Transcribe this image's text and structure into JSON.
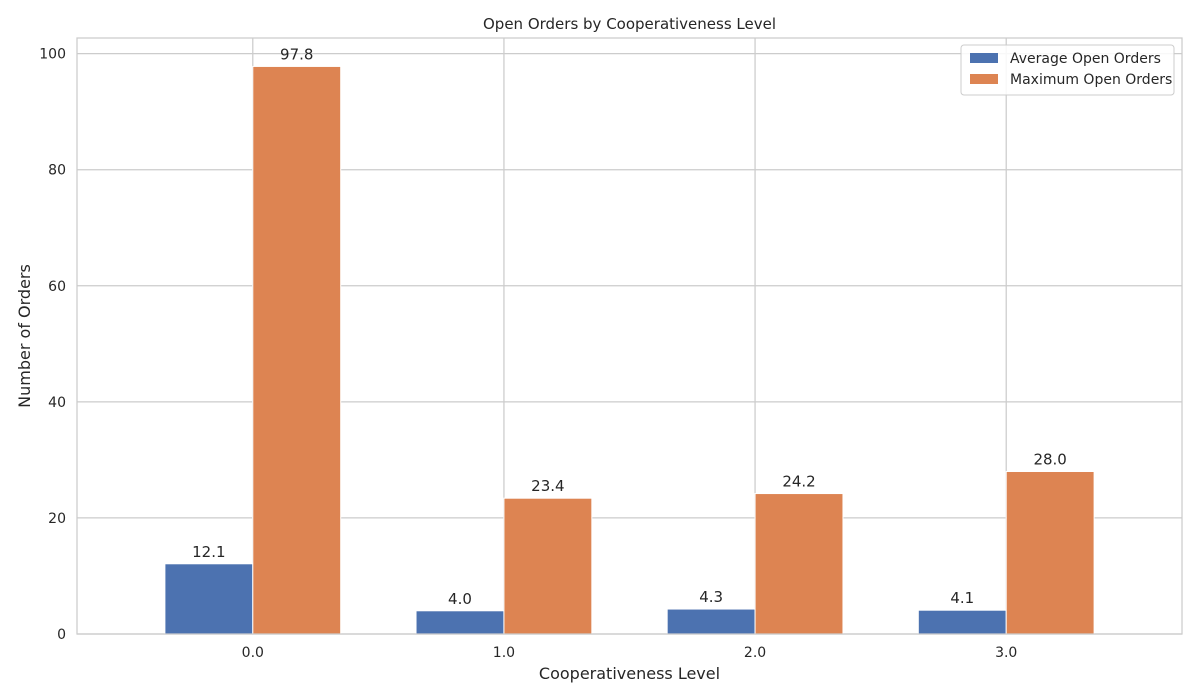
{
  "chart_data": {
    "type": "bar",
    "title": "Open Orders by Cooperativeness Level",
    "xlabel": "Cooperativeness Level",
    "ylabel": "Number of Orders",
    "categories": [
      "0.0",
      "1.0",
      "2.0",
      "3.0"
    ],
    "series": [
      {
        "name": "Average Open Orders",
        "values": [
          12.1,
          4.0,
          4.3,
          4.1
        ],
        "labels": [
          "12.1",
          "4.0",
          "4.3",
          "4.1"
        ],
        "color": "#4c72b0"
      },
      {
        "name": "Maximum Open Orders",
        "values": [
          97.8,
          23.4,
          24.2,
          28.0
        ],
        "labels": [
          "97.8",
          "23.4",
          "24.2",
          "28.0"
        ],
        "color": "#dd8452"
      }
    ],
    "ylim": [
      0,
      102.7
    ],
    "yticks": [
      "0",
      "20",
      "40",
      "60",
      "80",
      "100"
    ],
    "grid": true,
    "legend_position": "top-right",
    "colors": {
      "grid": "#cccccc",
      "axis": "#cccccc",
      "text": "#262626"
    }
  }
}
